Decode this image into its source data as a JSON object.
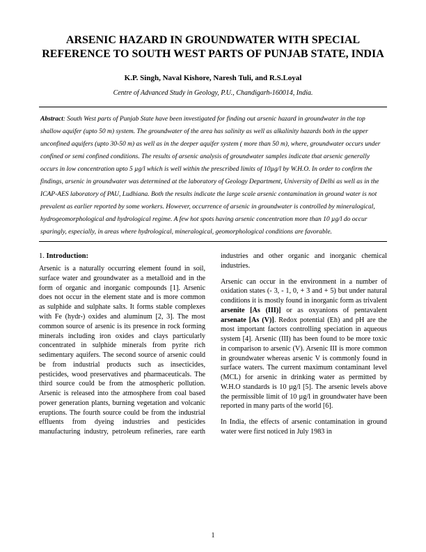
{
  "title": "ARSENIC HAZARD IN GROUNDWATER WITH SPECIAL REFERENCE TO SOUTH WEST PARTS OF PUNJAB STATE, INDIA",
  "authors": "K.P. Singh, Naval Kishore, Naresh Tuli,  and R.S.Loyal",
  "affiliation": "Centre of Advanced Study in Geology, P.U., Chandigarh-160014, India.",
  "abstract_label": "Abstract",
  "abstract_text": ": South West parts of Punjab State have been investigated for finding out arsenic hazard in groundwater in the top shallow  aquifer (upto 50 m) system.  The groundwater of the area has salinity as well as alkalinity hazards both in the upper unconfined aquifers (upto 30-50 m) as well as in the deeper aquifer system ( more than 50 m), where, groundwater occurs under confined or semi confined conditions.  The results of arsenic analysis of groundwater samples indicate that arsenic generally occurs in low concentration upto 5 µg/l which is well within the prescribed limits of 10µg/l by W.H.O.  In order to confirm the findings, arsenic in groundwater was determined at the laboratory of Geology Department, University of Delhi as well as in the ICAP-AES laboratory of PAU, Ludhiana.  Both the results indicate the large scale arsenic contamination in ground water is not prevalent as earlier reported by some workers.  However, occurrence of arsenic in groundwater is controlled by mineralogical, hydrogeomorphological and hydrological regime.  A few hot spots having arsenic concentration more than 10 µg/l do occur sparingly, especially, in areas where hydrological, mineralogical, geomorphological conditions are favorable.",
  "section_num": "1.",
  "section_label": " Introduction:",
  "body_p1": "Arsenic is a naturally occurring element found in soil, surface water and groundwater as a metalloid and in the form of organic and inorganic compounds [1]. Arsenic does not occur in the element state and is more common as sulphide and sulphate salts. It forms stable complexes with Fe (hydr-) oxides and aluminum [2, 3]. The most common source of arsenic is its presence in rock forming minerals including iron oxides and clays particularly concentrated in sulphide minerals from pyrite rich sedimentary aquifers. The second source of arsenic could be from industrial products such as insecticides, pesticides, wood preservatives and pharmaceuticals. The third source could be from the atmospheric pollution. Arsenic is released into the atmosphere from coal based power generation plants, burning vegetation and volcanic eruptions. The fourth source could be from the industrial effluents from dyeing industries and pesticides manufacturing industry, petroleum refineries, rare earth industries and other organic and inorganic chemical industries.",
  "body_p2_a": "Arsenic can occur in the environment in a number of oxidation states (- 3, - 1, 0, + 3 and + 5) but under natural conditions it is mostly found in inorganic form as trivalent ",
  "body_p2_b": "arsenite [As (III)]",
  "body_p2_c": " or as oxyanions of pentavalent ",
  "body_p2_d": "arsenate [As (V)]",
  "body_p2_e": ". Redox potential (Eh) and pH are the most important factors controlling speciation in aqueous system [4]. Arsenic (III) has been found to be more toxic in comparison to arsenic (V). Arsenic III is more common in groundwater whereas arsenic V is commonly found in surface waters. The current maximum contaminant level (MCL) for arsenic in drinking water as permitted by W.H.O standards is 10 µg/l [5]. The arsenic levels above the permissible limit of 10 µg/l in groundwater have been reported in many parts of the world [6].",
  "body_p3": "In India, the effects of arsenic contamination in ground water were first noticed in July 1983 in",
  "page_number": "1"
}
